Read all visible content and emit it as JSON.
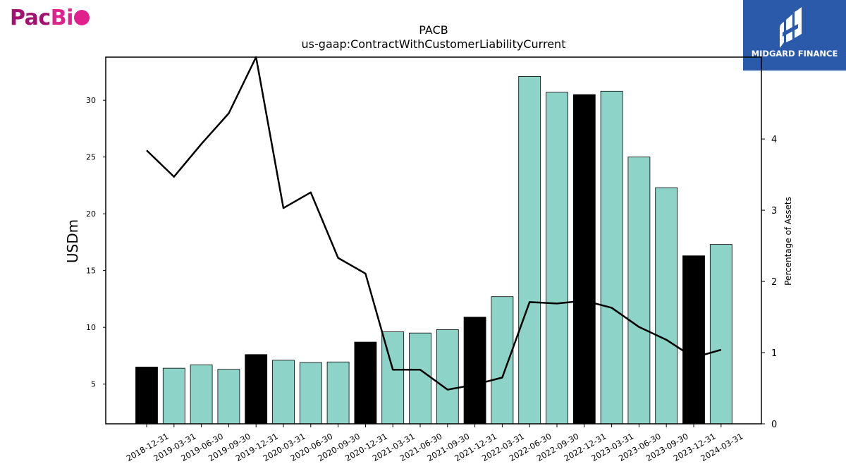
{
  "logo_left": {
    "part1": "Pac",
    "part2": "Bi"
  },
  "logo_right": {
    "name": "MIDGARD FINANCE",
    "icon": "midgard-mark-icon"
  },
  "colors": {
    "highlight_bar": "#000000",
    "normal_bar": "#8dd3c7",
    "line": "#000000",
    "pacbio_dark": "#a4126f",
    "pacbio_light": "#e0208c",
    "midgard_bg": "#2b5aab"
  },
  "chart_data": {
    "type": "bar",
    "title": "PACB",
    "subtitle": "us-gaap:ContractWithCustomerLiabilityCurrent",
    "ylabel": "USDm",
    "y2label": "Percentage of Assets",
    "categories": [
      "2018-12-31",
      "2019-03-31",
      "2019-06-30",
      "2019-09-30",
      "2019-12-31",
      "2020-03-31",
      "2020-06-30",
      "2020-09-30",
      "2020-12-31",
      "2021-03-31",
      "2021-06-30",
      "2021-09-30",
      "2021-12-31",
      "2022-03-31",
      "2022-06-30",
      "2022-09-30",
      "2022-12-31",
      "2023-03-31",
      "2023-06-30",
      "2023-09-30",
      "2023-12-31",
      "2024-03-31"
    ],
    "highlighted": [
      true,
      false,
      false,
      false,
      true,
      false,
      false,
      false,
      true,
      false,
      false,
      false,
      true,
      false,
      false,
      false,
      true,
      false,
      false,
      false,
      true,
      false
    ],
    "series": [
      {
        "type": "bar",
        "axis": "left",
        "values": [
          6.5,
          6.4,
          6.7,
          6.3,
          7.6,
          7.1,
          6.9,
          6.95,
          8.7,
          9.6,
          9.5,
          9.8,
          10.9,
          12.7,
          32.1,
          30.7,
          30.5,
          30.8,
          25.0,
          22.3,
          16.3,
          17.3
        ]
      },
      {
        "type": "line",
        "axis": "right",
        "values": [
          3.84,
          3.47,
          3.93,
          4.36,
          5.15,
          3.03,
          3.25,
          2.33,
          2.11,
          0.76,
          0.76,
          0.48,
          0.55,
          0.65,
          1.71,
          1.69,
          1.73,
          1.63,
          1.36,
          1.18,
          0.93,
          1.04
        ]
      }
    ],
    "ylim": [
      1.5,
      33.8
    ],
    "y2lim": [
      0,
      5.15
    ],
    "yticks": [
      5,
      10,
      15,
      20,
      25,
      30
    ],
    "y2ticks": [
      0,
      1,
      2,
      3,
      4
    ],
    "grid": false
  }
}
